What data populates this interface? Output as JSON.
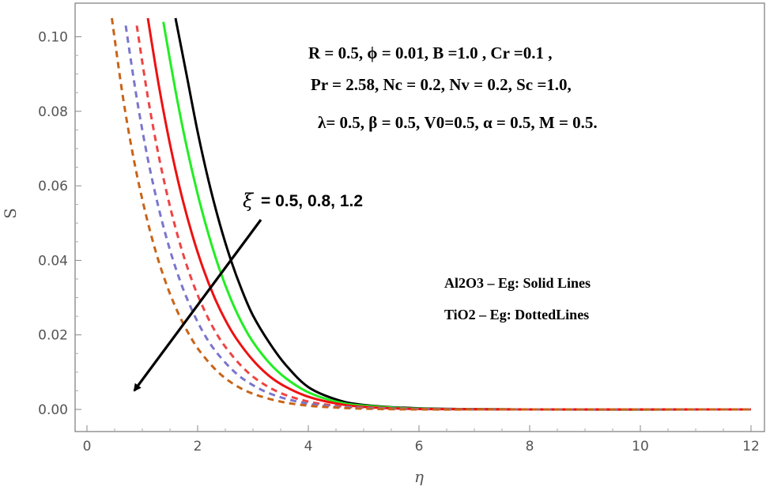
{
  "chart_data": {
    "type": "line",
    "xlabel": "η",
    "ylabel": "S",
    "xlim": [
      0,
      12
    ],
    "ylim": [
      0,
      0.105
    ],
    "x_ticks": [
      "0",
      "2",
      "4",
      "6",
      "8",
      "10",
      "12"
    ],
    "y_ticks": [
      "0.00",
      "0.02",
      "0.04",
      "0.06",
      "0.08",
      "0.10"
    ],
    "grid": false,
    "parameter_lines": [
      "R = 0.5, ϕ = 0.01, B =1.0 , Cr =0.1 ,",
      "Pr = 2.58, Nc = 0.2, Nv = 0.2, Sc =1.0,",
      "λ= 0.5, β = 0.5,  V0=0.5, α = 0.5, M = 0.5."
    ],
    "xi_annotation": {
      "symbol": "ξ",
      "text": "= 0.5, 0.8, 1.2"
    },
    "legend_lines": [
      "Al2O3 – Eg: Solid Lines",
      "TiO2 – Eg: DottedLines"
    ],
    "series": [
      {
        "color": "#000000",
        "dash": "solid",
        "x": [
          1.6,
          1.8,
          2.0,
          2.2,
          2.4,
          2.6,
          2.8,
          3.0,
          3.3,
          3.6,
          4.0,
          4.5,
          5.0,
          6.0,
          8.0,
          12.0
        ],
        "y": [
          0.105,
          0.0898,
          0.0745,
          0.0612,
          0.0498,
          0.0401,
          0.032,
          0.0252,
          0.0178,
          0.0118,
          0.006,
          0.0027,
          0.0012,
          0.0003,
          0.0,
          0.0
        ]
      },
      {
        "color": "#22ee22",
        "dash": "solid",
        "x": [
          1.38,
          1.6,
          1.8,
          2.0,
          2.2,
          2.4,
          2.6,
          2.8,
          3.0,
          3.3,
          3.6,
          4.0,
          4.5,
          5.0,
          6.0,
          8.0,
          12.0
        ],
        "y": [
          0.104,
          0.0855,
          0.0706,
          0.0578,
          0.0468,
          0.0374,
          0.0296,
          0.0232,
          0.0181,
          0.0124,
          0.0083,
          0.0046,
          0.0021,
          0.001,
          0.0002,
          0.0,
          0.0
        ]
      },
      {
        "color": "#ee1111",
        "dash": "solid",
        "x": [
          1.1,
          1.3,
          1.5,
          1.7,
          1.9,
          2.1,
          2.3,
          2.5,
          2.7,
          3.0,
          3.3,
          3.6,
          4.0,
          4.5,
          5.0,
          6.0,
          8.0,
          12.0
        ],
        "y": [
          0.105,
          0.0868,
          0.0712,
          0.058,
          0.047,
          0.0378,
          0.0302,
          0.024,
          0.019,
          0.0132,
          0.0089,
          0.006,
          0.0034,
          0.0016,
          0.0007,
          0.0001,
          0.0,
          0.0
        ]
      },
      {
        "color": "#ee4444",
        "dash": "dashed",
        "x": [
          0.9,
          1.1,
          1.3,
          1.5,
          1.7,
          1.9,
          2.1,
          2.3,
          2.5,
          2.8,
          3.1,
          3.5,
          4.0,
          4.5,
          5.0,
          6.0,
          8.0,
          12.0
        ],
        "y": [
          0.103,
          0.0838,
          0.0678,
          0.0545,
          0.0435,
          0.0345,
          0.0273,
          0.0214,
          0.0168,
          0.0115,
          0.0077,
          0.0044,
          0.0021,
          0.001,
          0.0005,
          0.0001,
          0.0,
          0.0
        ]
      },
      {
        "color": "#7a76cc",
        "dash": "dashed",
        "x": [
          0.7,
          0.9,
          1.1,
          1.3,
          1.5,
          1.7,
          1.9,
          2.1,
          2.3,
          2.6,
          2.9,
          3.3,
          3.8,
          4.3,
          5.0,
          6.0,
          8.0,
          12.0
        ],
        "y": [
          0.103,
          0.0835,
          0.0672,
          0.0538,
          0.0428,
          0.0338,
          0.0266,
          0.0207,
          0.0161,
          0.011,
          0.0074,
          0.0043,
          0.0021,
          0.001,
          0.0004,
          0.0001,
          0.0,
          0.0
        ]
      },
      {
        "color": "#c86418",
        "dash": "dashed",
        "x": [
          0.45,
          0.65,
          0.85,
          1.05,
          1.25,
          1.45,
          1.65,
          1.85,
          2.05,
          2.35,
          2.65,
          3.0,
          3.5,
          4.0,
          4.5,
          5.0,
          6.0,
          8.0,
          12.0
        ],
        "y": [
          0.105,
          0.0838,
          0.0668,
          0.0532,
          0.042,
          0.033,
          0.0258,
          0.02,
          0.0154,
          0.0103,
          0.0068,
          0.0042,
          0.0021,
          0.001,
          0.0005,
          0.0002,
          0.0,
          0.0,
          0.0
        ]
      }
    ]
  }
}
